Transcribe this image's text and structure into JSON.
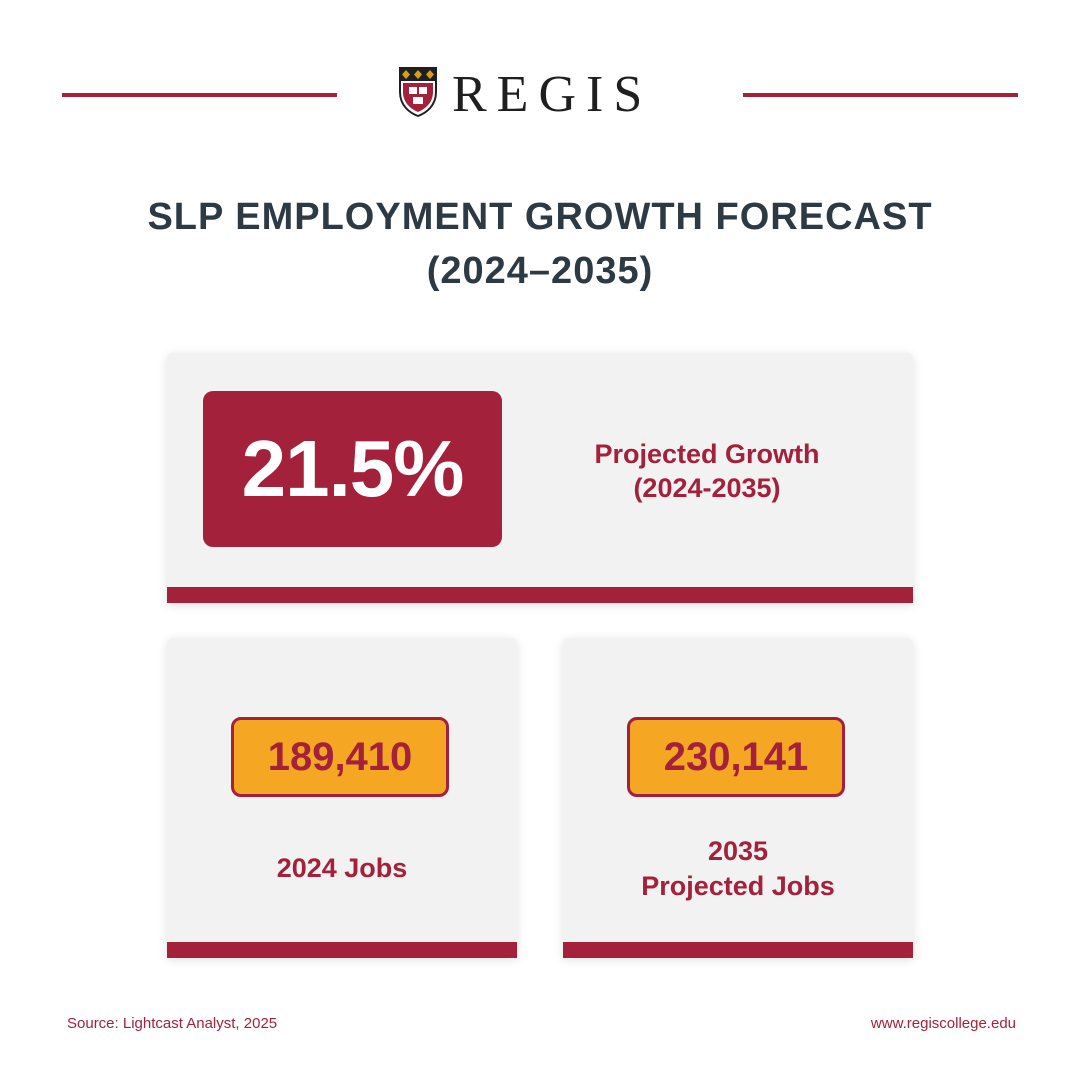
{
  "brand": {
    "name": "REGIS",
    "logo_icon": "crest-icon"
  },
  "title": {
    "line1": "SLP EMPLOYMENT GROWTH FORECAST",
    "line2": "(2024–2035)"
  },
  "growth": {
    "value": "21.5%",
    "label_line1": "Projected Growth",
    "label_line2": "(2024-2035)"
  },
  "jobs_2024": {
    "value": "189,410",
    "label": "2024 Jobs"
  },
  "jobs_2035": {
    "value": "230,141",
    "label_line1": "2035",
    "label_line2": "Projected Jobs"
  },
  "footer": {
    "source": "Source: Lightcast Analyst, 2025",
    "website": "www.regiscollege.edu"
  },
  "colors": {
    "accent": "#a3213a",
    "highlight": "#f5a623",
    "title": "#2d3a44",
    "card": "#f2f2f2"
  }
}
